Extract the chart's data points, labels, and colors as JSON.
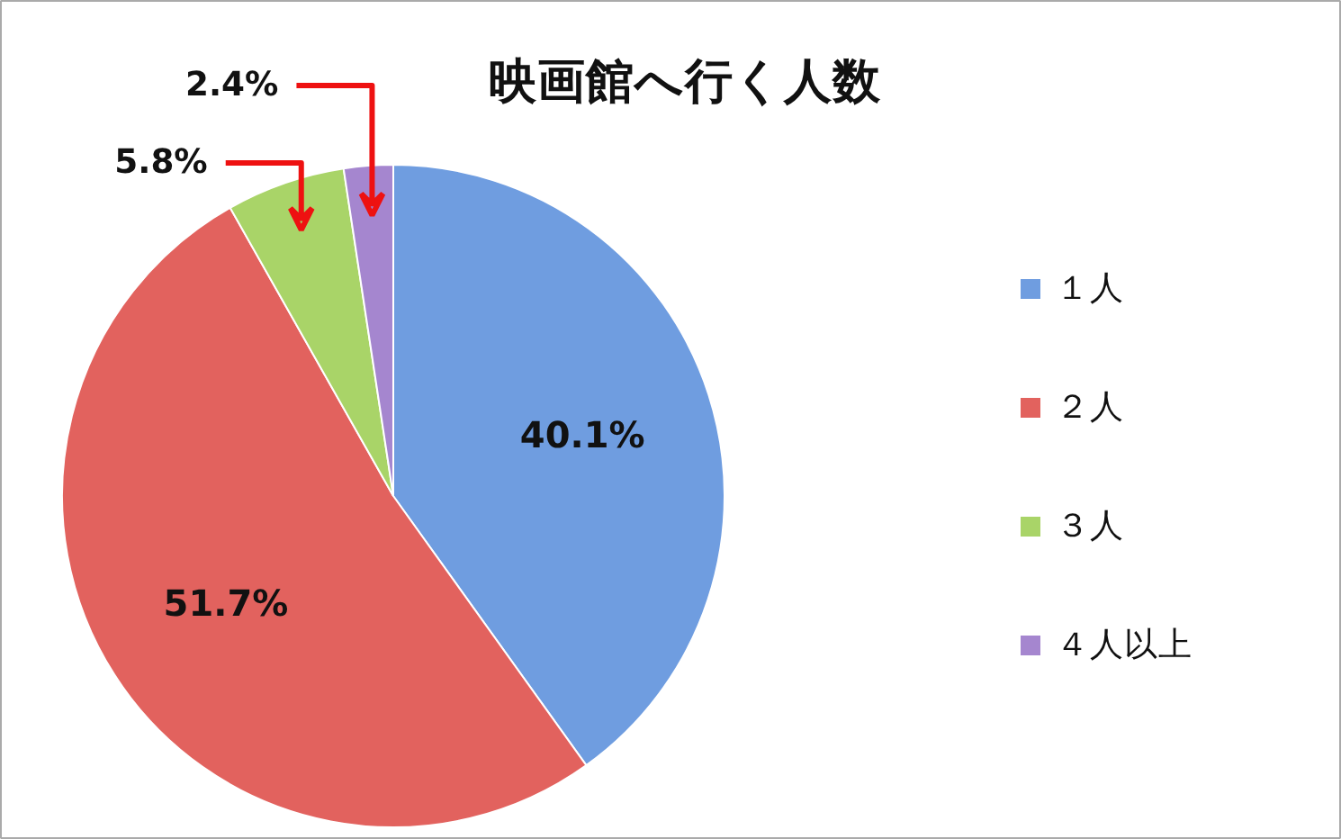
{
  "chart_data": {
    "type": "pie",
    "title": "映画館へ行く人数",
    "categories": [
      "１人",
      "２人",
      "３人",
      "４人以上"
    ],
    "values": [
      40.1,
      51.7,
      5.8,
      2.4
    ],
    "colors": [
      "#6f9de0",
      "#e2625e",
      "#a9d468",
      "#a586cf"
    ],
    "value_labels": [
      "40.1%",
      "51.7%",
      "5.8%",
      "2.4%"
    ],
    "legend": "right"
  }
}
